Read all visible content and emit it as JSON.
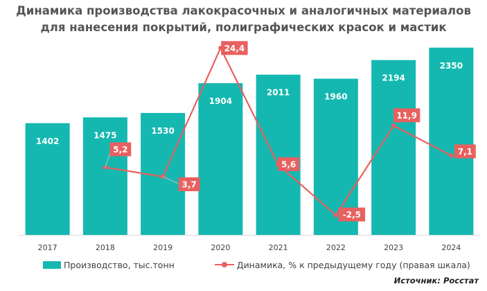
{
  "chart_data": {
    "type": "bar+line",
    "title_lines": [
      "Динамика производства лакокрасочных и аналогичных материалов",
      "для нанесения покрытий, полиграфических красок и мастик"
    ],
    "categories": [
      "2017",
      "2018",
      "2019",
      "2020",
      "2021",
      "2022",
      "2023",
      "2024"
    ],
    "series": [
      {
        "name": "Производство, тыс.тонн",
        "type": "bar",
        "axis": "left",
        "values": [
          1402,
          1475,
          1530,
          1904,
          2011,
          1960,
          2194,
          2350
        ],
        "labels": [
          "1402",
          "1475",
          "1530",
          "1904",
          "2011",
          "1960",
          "2194",
          "2350"
        ]
      },
      {
        "name": "Динамика, % к предыдущему году (правая шкала)",
        "type": "line",
        "axis": "right",
        "values": [
          null,
          5.2,
          3.7,
          24.4,
          5.6,
          -2.5,
          11.9,
          7.1
        ],
        "labels": [
          "",
          "5,2",
          "3,7",
          "24,4",
          "5,6",
          "-2,5",
          "11,9",
          "7,1"
        ]
      }
    ],
    "ylim_left": [
      0,
      2400
    ],
    "ylim_right": [
      -4,
      27
    ],
    "grid": false,
    "legend_position": "bottom",
    "source": "Источник: Росстат"
  },
  "colors": {
    "bar": "#14b8b0",
    "line": "#e8605f",
    "bar_label": "#ffffff",
    "axis_text": "#404040",
    "title": "#555555"
  }
}
